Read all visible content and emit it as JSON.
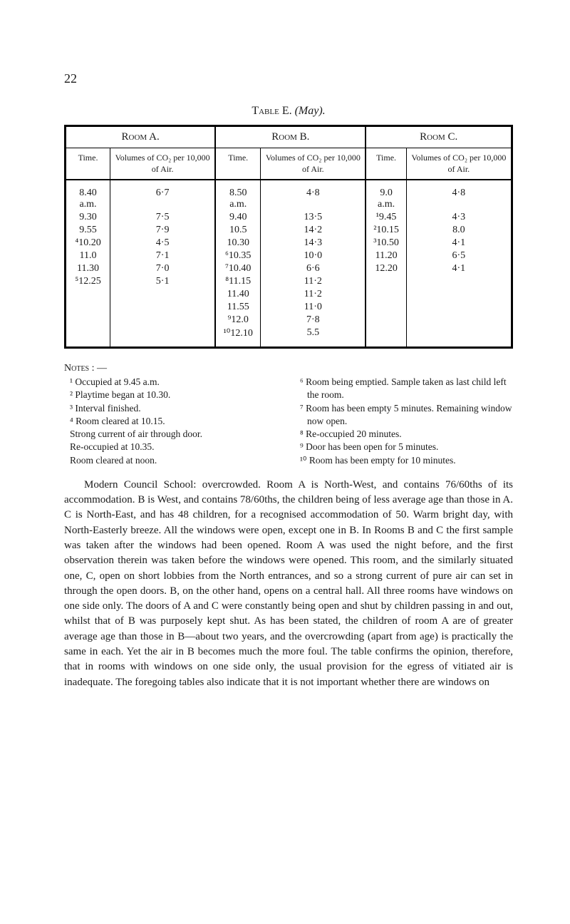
{
  "pageNumber": "22",
  "tableTitle": {
    "prefix": "Table",
    "letter": "E.",
    "suffix": "(May)."
  },
  "roomHeaders": [
    "Room A.",
    "Room B.",
    "Room C."
  ],
  "colSubHeaders": {
    "time": "Time.",
    "co2": "Volumes of CO₂ per 10,000 of Air."
  },
  "rows": [
    {
      "a_t": "8.40 a.m.",
      "a_v": "6·7",
      "b_t": "8.50 a.m.",
      "b_v": "4·8",
      "c_t": "9.0 a.m.",
      "c_v": "4·8"
    },
    {
      "a_t": "9.30",
      "a_v": "7·5",
      "b_t": "9.40",
      "b_v": "13·5",
      "c_t": "¹9.45",
      "c_v": "4·3"
    },
    {
      "a_t": "9.55",
      "a_v": "7·9",
      "b_t": "10.5",
      "b_v": "14·2",
      "c_t": "²10.15",
      "c_v": "8.0"
    },
    {
      "a_t": "⁴10.20",
      "a_v": "4·5",
      "b_t": "10.30",
      "b_v": "14·3",
      "c_t": "³10.50",
      "c_v": "4·1"
    },
    {
      "a_t": "11.0",
      "a_v": "7·1",
      "b_t": "⁶10.35",
      "b_v": "10·0",
      "c_t": "11.20",
      "c_v": "6·5"
    },
    {
      "a_t": "11.30",
      "a_v": "7·0",
      "b_t": "⁷10.40",
      "b_v": "6·6",
      "c_t": "12.20",
      "c_v": "4·1"
    },
    {
      "a_t": "⁵12.25",
      "a_v": "5·1",
      "b_t": "⁸11.15",
      "b_v": "11·2",
      "c_t": "",
      "c_v": ""
    },
    {
      "a_t": "",
      "a_v": "",
      "b_t": "11.40",
      "b_v": "11·2",
      "c_t": "",
      "c_v": ""
    },
    {
      "a_t": "",
      "a_v": "",
      "b_t": "11.55",
      "b_v": "11·0",
      "c_t": "",
      "c_v": ""
    },
    {
      "a_t": "",
      "a_v": "",
      "b_t": "⁹12.0",
      "b_v": "7·8",
      "c_t": "",
      "c_v": ""
    },
    {
      "a_t": "",
      "a_v": "",
      "b_t": "¹⁰12.10",
      "b_v": "5.5",
      "c_t": "",
      "c_v": ""
    }
  ],
  "notesHead": "Notes : —",
  "notesLeft": [
    "¹ Occupied at 9.45 a.m.",
    "² Playtime began at 10.30.",
    "³ Interval finished.",
    "⁴ Room cleared at 10.15.",
    "  Strong current of air through door.",
    "  Re-occupied at 10.35.",
    "  Room cleared at noon."
  ],
  "notesRight": [
    "⁶ Room being emptied. Sample taken as last child left the room.",
    "⁷ Room has been empty 5 minutes. Remaining window now open.",
    "⁸ Re-occupied 20 minutes.",
    "⁹ Door has been open for 5 minutes.",
    "¹⁰ Room has been empty for 10 minutes."
  ],
  "bodyText": "Modern Council School: overcrowded. Room A is North-West, and contains 76/60ths of its accommodation. B is West, and contains 78/60ths, the children being of less average age than those in A. C is North-East, and has 48 children, for a recognised accommodation of 50. Warm bright day, with North-Easterly breeze. All the windows were open, except one in B. In Rooms B and C the first sample was taken after the windows had been opened. Room A was used the night before, and the first observation therein was taken before the windows were opened. This room, and the similarly situated one, C, open on short lobbies from the North entrances, and so a strong current of pure air can set in through the open doors. B, on the other hand, opens on a central hall. All three rooms have windows on one side only. The doors of A and C were constantly being open and shut by children passing in and out, whilst that of B was purposely kept shut. As has been stated, the children of room A are of greater average age than those in B—about two years, and the overcrowding (apart from age) is practically the same in each. Yet the air in B becomes much the more foul. The table confirms the opinion, therefore, that in rooms with windows on one side only, the usual provision for the egress of vitiated air is inadequate. The foregoing tables also indicate that it is not important whether there are windows on",
  "style": {
    "page_bg": "#ffffff",
    "text_color": "#1a1a1a",
    "border_color": "#000000",
    "body_fontsize": 15,
    "table_fontsize": 14,
    "notes_fontsize": 13.5
  }
}
